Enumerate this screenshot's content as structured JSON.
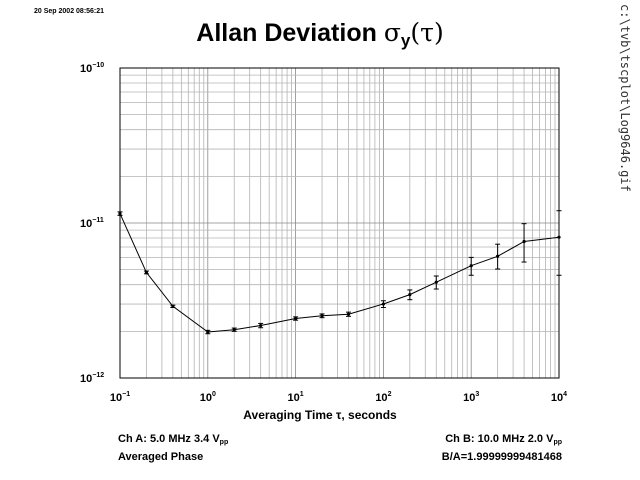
{
  "timestamp": "20 Sep 2002 08:56:21",
  "side_path": "c:\\tvb\\tscplot\\Log9646.gif",
  "title": {
    "text": "Allan Deviation ",
    "symbol": "σ",
    "subscript": "y",
    "argument": "(τ)"
  },
  "info": {
    "ch_a": {
      "text": "Ch A: 5.0 MHz 3.4 V",
      "subscript": "pp"
    },
    "left_line2": "Averaged Phase",
    "ch_b": {
      "text": "Ch B: 10.0 MHz 2.0 V",
      "subscript": "pp"
    },
    "ratio": "B/A=1.99999999481468"
  },
  "chart_data": {
    "type": "line",
    "title": "Allan Deviation σy(τ)",
    "xlabel": "Averaging Time τ, seconds",
    "ylabel": "",
    "x_scale": "log",
    "y_scale": "log",
    "xlim": [
      0.1,
      10000
    ],
    "ylim": [
      1e-12,
      1e-10
    ],
    "grid": true,
    "x_ticks": [
      {
        "base": "10",
        "exp": "−1"
      },
      {
        "base": "10",
        "exp": "0"
      },
      {
        "base": "10",
        "exp": "1"
      },
      {
        "base": "10",
        "exp": "2"
      },
      {
        "base": "10",
        "exp": "3"
      },
      {
        "base": "10",
        "exp": "4"
      }
    ],
    "y_ticks": [
      {
        "base": "10",
        "exp": "−10"
      },
      {
        "base": "10",
        "exp": "−11"
      },
      {
        "base": "10",
        "exp": "−12"
      }
    ],
    "series": [
      {
        "x": [
          0.1,
          0.2,
          0.4,
          1.0,
          2.0,
          4.0,
          10,
          20,
          40,
          100,
          200,
          400,
          1000,
          2000,
          4000,
          10000
        ],
        "y": [
          1.15e-11,
          4.8e-12,
          2.9e-12,
          1.98e-12,
          2.05e-12,
          2.18e-12,
          2.42e-12,
          2.52e-12,
          2.58e-12,
          3e-12,
          3.45e-12,
          4.15e-12,
          5.3e-12,
          6.1e-12,
          7.6e-12,
          8.1e-12
        ],
        "err_low": [
          1.12e-11,
          4.7e-12,
          2.85e-12,
          1.93e-12,
          2e-12,
          2.11e-12,
          2.36e-12,
          2.45e-12,
          2.5e-12,
          2.85e-12,
          3.2e-12,
          3.75e-12,
          4.6e-12,
          5.05e-12,
          5.6e-12,
          4.6e-12
        ],
        "err_high": [
          1.18e-11,
          4.9e-12,
          2.95e-12,
          2.03e-12,
          2.1e-12,
          2.25e-12,
          2.48e-12,
          2.59e-12,
          2.66e-12,
          3.15e-12,
          3.7e-12,
          4.55e-12,
          6e-12,
          7.3e-12,
          9.9e-12,
          1.2e-11
        ]
      }
    ]
  }
}
